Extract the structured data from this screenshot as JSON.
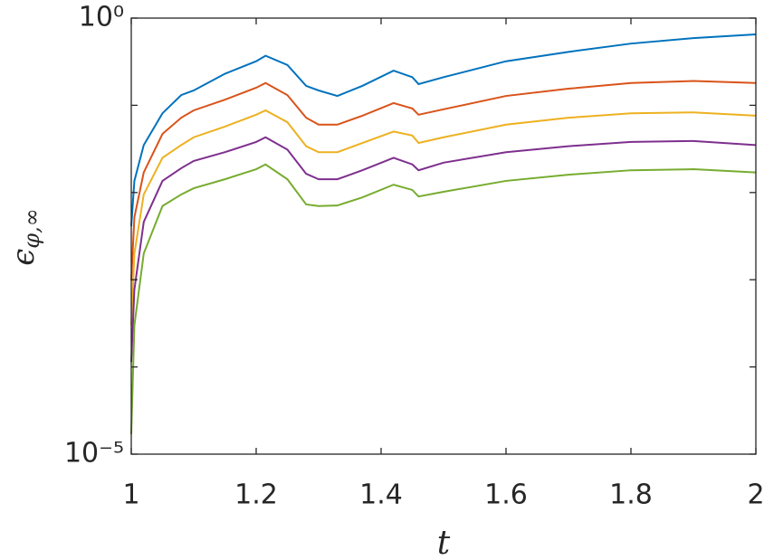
{
  "chart_data": {
    "type": "line",
    "xlabel": "t",
    "ylabel": {
      "symbol": "ϵ",
      "subscript": "φ,∞"
    },
    "log_y": true,
    "box": true,
    "x": [
      1.0,
      1.005,
      1.02,
      1.05,
      1.08,
      1.1,
      1.15,
      1.2,
      1.215,
      1.25,
      1.28,
      1.3,
      1.33,
      1.37,
      1.42,
      1.45,
      1.46,
      1.5,
      1.6,
      1.7,
      1.8,
      1.9,
      2.0
    ],
    "series": [
      {
        "color": "#0072BD",
        "values": [
          0.0041,
          0.0136,
          0.035,
          0.081,
          0.131,
          0.148,
          0.23,
          0.32,
          0.37,
          0.29,
          0.167,
          0.148,
          0.128,
          0.167,
          0.25,
          0.21,
          0.175,
          0.21,
          0.32,
          0.41,
          0.51,
          0.59,
          0.65
        ]
      },
      {
        "color": "#D95319",
        "values": [
          0.00098,
          0.0052,
          0.017,
          0.047,
          0.072,
          0.0875,
          0.116,
          0.159,
          0.18,
          0.131,
          0.072,
          0.06,
          0.06,
          0.076,
          0.106,
          0.092,
          0.078,
          0.09,
          0.128,
          0.155,
          0.18,
          0.19,
          0.18
        ]
      },
      {
        "color": "#EDB120",
        "values": [
          0.0003,
          0.002,
          0.0095,
          0.025,
          0.035,
          0.043,
          0.057,
          0.078,
          0.0875,
          0.064,
          0.034,
          0.029,
          0.029,
          0.037,
          0.05,
          0.045,
          0.037,
          0.043,
          0.06,
          0.072,
          0.081,
          0.083,
          0.076
        ]
      },
      {
        "color": "#7E2F8E",
        "values": [
          0.000114,
          0.00077,
          0.0046,
          0.0136,
          0.019,
          0.023,
          0.029,
          0.038,
          0.043,
          0.031,
          0.0164,
          0.0142,
          0.0142,
          0.018,
          0.025,
          0.021,
          0.018,
          0.022,
          0.029,
          0.034,
          0.038,
          0.039,
          0.035
        ]
      },
      {
        "color": "#77AC30",
        "values": [
          1.69e-05,
          0.0003,
          0.002,
          0.007,
          0.0095,
          0.0112,
          0.0142,
          0.0185,
          0.021,
          0.0142,
          0.0073,
          0.007,
          0.0071,
          0.0088,
          0.0123,
          0.0107,
          0.009,
          0.0102,
          0.0136,
          0.016,
          0.018,
          0.0185,
          0.017
        ]
      }
    ],
    "xlim": [
      1,
      2
    ],
    "xticks": [
      1,
      1.2,
      1.4,
      1.6,
      1.8,
      2
    ],
    "ylim": [
      1e-05,
      1
    ],
    "yticks": [
      {
        "value": 1e-05,
        "label": "10⁻⁵"
      },
      {
        "value": 0.0001,
        "label": null
      },
      {
        "value": 0.001,
        "label": null
      },
      {
        "value": 0.01,
        "label": null
      },
      {
        "value": 0.1,
        "label": null
      },
      {
        "value": 1,
        "label": "10⁰"
      }
    ]
  }
}
